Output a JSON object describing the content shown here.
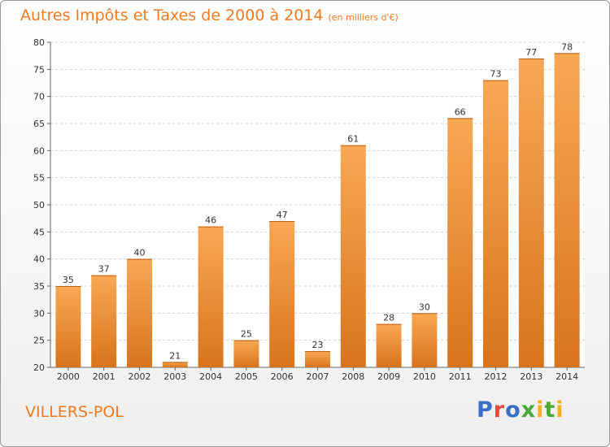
{
  "chart_data": {
    "type": "bar",
    "title": "Autres Impôts et Taxes de 2000 à 2014",
    "subtitle": "(en milliers d'€)",
    "categories": [
      "2000",
      "2001",
      "2002",
      "2003",
      "2004",
      "2005",
      "2006",
      "2007",
      "2008",
      "2009",
      "2010",
      "2011",
      "2012",
      "2013",
      "2014"
    ],
    "values": [
      35,
      37,
      40,
      21,
      46,
      25,
      47,
      23,
      61,
      28,
      30,
      66,
      73,
      77,
      78
    ],
    "ylim": [
      20,
      80
    ],
    "yticks": [
      20,
      25,
      30,
      35,
      40,
      45,
      50,
      55,
      60,
      65,
      70,
      75,
      80
    ],
    "grid": "horizontal dashed",
    "bar_color": "#f4a14a"
  },
  "footer": {
    "place": "VILLERS-POL",
    "logo": "Proxiti"
  }
}
